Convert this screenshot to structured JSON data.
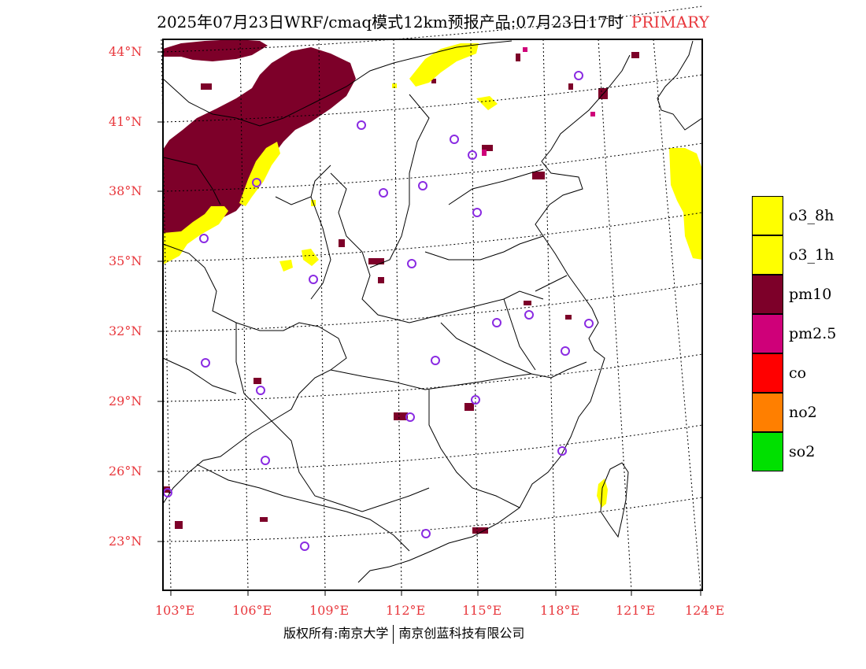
{
  "title": {
    "main": "2025年07月23日WRF/cmaq模式12km预报产品:07月23日17时",
    "tag": "PRIMARY",
    "tag_color": "#e8383d"
  },
  "map": {
    "lat_labels": [
      "44°N",
      "41°N",
      "38°N",
      "35°N",
      "32°N",
      "29°N",
      "26°N",
      "23°N"
    ],
    "lon_labels": [
      "103°E",
      "106°E",
      "109°E",
      "112°E",
      "115°E",
      "118°E",
      "121°E",
      "124°E"
    ],
    "station_marker": "purple-circle",
    "station_color": "#8a2be2",
    "border_color": "#000000"
  },
  "legend": {
    "items": [
      {
        "label": "o3_8h",
        "color": "#ffff00"
      },
      {
        "label": "o3_1h",
        "color": "#ffff00"
      },
      {
        "label": "pm10",
        "color": "#7d0029"
      },
      {
        "label": "pm2.5",
        "color": "#cf0079"
      },
      {
        "label": "co",
        "color": "#ff0000"
      },
      {
        "label": "no2",
        "color": "#ff7f00"
      },
      {
        "label": "so2",
        "color": "#00e000"
      }
    ]
  },
  "footer": {
    "left": "版权所有:南京大学",
    "right": "南京创蓝科技有限公司"
  }
}
